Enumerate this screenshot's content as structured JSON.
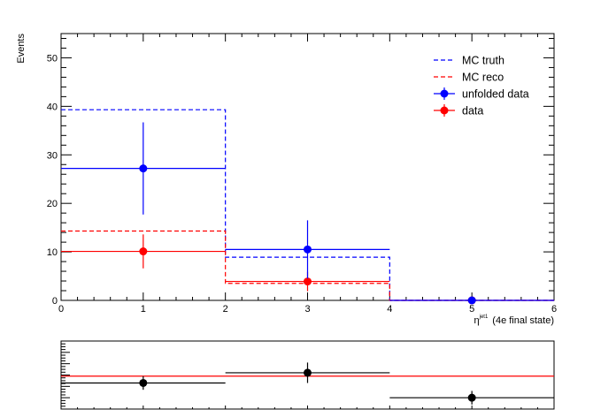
{
  "chart_data": [
    {
      "type": "histogram",
      "xlabel_main": "η",
      "xlabel_sup": "jet1",
      "xlabel_suffix": "(4e final state)",
      "ylabel": "Events",
      "xlim": [
        0,
        6
      ],
      "ylim": [
        0,
        55
      ],
      "xticks": [
        0,
        1,
        2,
        3,
        4,
        5,
        6
      ],
      "yticks": [
        0,
        10,
        20,
        30,
        40,
        50
      ],
      "legend_position": "top-right",
      "grid": false,
      "bin_edges": [
        0,
        2,
        4,
        6
      ],
      "series": [
        {
          "name": "MC truth",
          "style": "dashed-line",
          "color": "#0000ff",
          "values": [
            39.3,
            8.9,
            0
          ]
        },
        {
          "name": "MC reco",
          "style": "dashed-line",
          "color": "#ff0000",
          "values": [
            14.3,
            3.5,
            0
          ]
        },
        {
          "name": "unfolded data",
          "style": "marker",
          "color": "#0000ff",
          "values": [
            27.2,
            10.5,
            0
          ],
          "err_low": [
            9.5,
            6.0,
            0
          ],
          "err_high": [
            9.5,
            6.0,
            0
          ]
        },
        {
          "name": "data",
          "style": "marker",
          "color": "#ff0000",
          "values": [
            10.1,
            3.9,
            0
          ],
          "err_low": [
            3.5,
            2.0,
            0
          ],
          "err_high": [
            3.5,
            2.0,
            0
          ]
        }
      ]
    },
    {
      "type": "ratio",
      "xlim": [
        0,
        6
      ],
      "ylim": [
        0,
        3
      ],
      "bin_edges": [
        0,
        2,
        4,
        6
      ],
      "reference_line": 1.45,
      "reference_color": "#ff0000",
      "values": [
        1.15,
        1.6,
        0.5
      ],
      "err_low": [
        0.3,
        0.45,
        0.3
      ],
      "err_high": [
        0.3,
        0.45,
        0.3
      ],
      "marker_color": "#000000"
    }
  ]
}
